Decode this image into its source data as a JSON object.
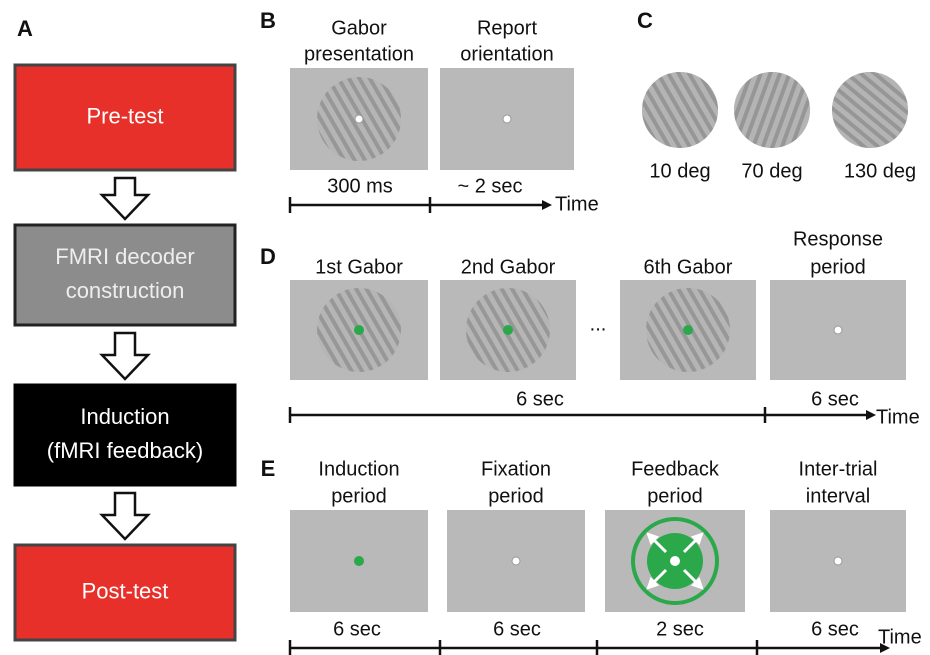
{
  "panel_a": {
    "label": "A",
    "steps": [
      {
        "lines": [
          "Pre-test"
        ]
      },
      {
        "lines": [
          "FMRI decoder",
          "construction"
        ]
      },
      {
        "lines": [
          "Induction",
          "(fMRI feedback)"
        ]
      },
      {
        "lines": [
          "Post-test"
        ]
      }
    ]
  },
  "panel_b": {
    "label": "B",
    "frames": [
      {
        "title": [
          "Gabor",
          "presentation"
        ],
        "duration": "300 ms"
      },
      {
        "title": [
          "Report",
          "orientation"
        ],
        "duration": "~ 2 sec"
      }
    ],
    "axis_label": "Time"
  },
  "panel_c": {
    "label": "C",
    "gabors": [
      "10 deg",
      "70 deg",
      "130 deg"
    ]
  },
  "panel_d": {
    "label": "D",
    "frames": [
      {
        "title": [
          "1st Gabor"
        ]
      },
      {
        "title": [
          "2nd Gabor"
        ]
      },
      {
        "title": [
          "6th Gabor"
        ]
      },
      {
        "title": [
          "Response",
          "period"
        ]
      }
    ],
    "ellipsis": "...",
    "durations": [
      "6 sec",
      "6 sec"
    ],
    "axis_label": "Time"
  },
  "panel_e": {
    "label": "E",
    "frames": [
      {
        "title": [
          "Induction",
          "period"
        ],
        "duration": "6 sec"
      },
      {
        "title": [
          "Fixation",
          "period"
        ],
        "duration": "6 sec"
      },
      {
        "title": [
          "Feedback",
          "period"
        ],
        "duration": "2 sec"
      },
      {
        "title": [
          "Inter-trial",
          "interval"
        ],
        "duration": "6 sec"
      }
    ],
    "axis_label": "Time"
  }
}
